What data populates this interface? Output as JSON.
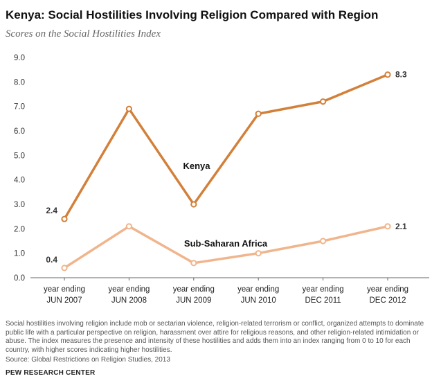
{
  "chart_data": {
    "type": "line",
    "title": "Kenya: Social Hostilities Involving Religion Compared with Region",
    "subtitle": "Scores on the Social Hostilities Index",
    "ylim": [
      0,
      9
    ],
    "yticks": [
      "0.0",
      "1.0",
      "2.0",
      "3.0",
      "4.0",
      "5.0",
      "6.0",
      "7.0",
      "8.0",
      "9.0"
    ],
    "categories": [
      [
        "year ending",
        "JUN 2007"
      ],
      [
        "year ending",
        "JUN 2008"
      ],
      [
        "year ending",
        "JUN 2009"
      ],
      [
        "year ending",
        "JUN 2010"
      ],
      [
        "year ending",
        "DEC 2011"
      ],
      [
        "year ending",
        "DEC 2012"
      ]
    ],
    "series": [
      {
        "name": "Kenya",
        "color": "#d2803a",
        "values": [
          2.4,
          6.9,
          3.0,
          6.7,
          7.2,
          8.3
        ],
        "labels": [
          "2.4",
          "",
          "",
          "",
          "",
          "8.3"
        ]
      },
      {
        "name": "Sub-Saharan Africa",
        "color": "#f0b58c",
        "values": [
          0.4,
          2.1,
          0.6,
          1.0,
          1.5,
          2.1
        ],
        "labels": [
          "0.4",
          "",
          "",
          "",
          "",
          "2.1"
        ]
      }
    ],
    "grid": false,
    "legend": "inline labels"
  },
  "footer": {
    "note": "Social hostilities involving religion include mob or sectarian violence, religion-related terrorism or conflict, organized attempts to dominate public life with a particular perspective on religion, harassment over attire for religious reasons, and other religion-related intimidation or abuse. The index measures the presence and intensity of these hostilities and adds them into an index ranging from 0 to 10 for each country, with higher scores indicating higher hostilities.",
    "source": "Source:  Global Restrictions on Religion Studies, 2013",
    "brand": "PEW RESEARCH CENTER"
  }
}
